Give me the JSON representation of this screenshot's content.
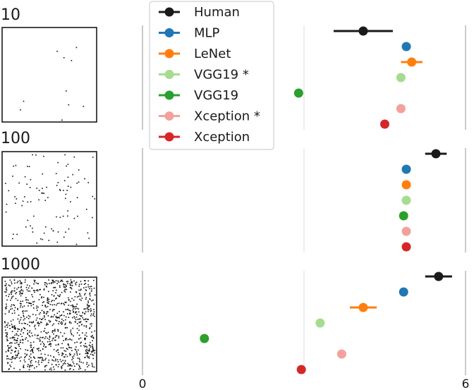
{
  "chart_data": {
    "type": "scatter",
    "xlim": [
      0,
      6
    ],
    "xticks": [
      "0",
      "6"
    ],
    "grid": true,
    "legend_position": "top-center",
    "series": [
      {
        "name": "Human",
        "color": "#1a1a1a"
      },
      {
        "name": "MLP",
        "color": "#1f77b4"
      },
      {
        "name": "LeNet",
        "color": "#ff7f0e"
      },
      {
        "name": "VGG19 *",
        "color": "#a6dc8f"
      },
      {
        "name": "VGG19",
        "color": "#2ca02c"
      },
      {
        "name": "Xception *",
        "color": "#f4a19e"
      },
      {
        "name": "Xception",
        "color": "#d62728"
      }
    ],
    "panels": [
      {
        "label": "10",
        "dot_count": 10,
        "values": [
          4.1,
          4.9,
          5.0,
          4.8,
          2.9,
          4.8,
          4.5
        ],
        "errors": [
          0.55,
          0,
          0.2,
          0,
          0,
          0,
          0
        ]
      },
      {
        "label": "100",
        "dot_count": 100,
        "values": [
          5.45,
          4.9,
          4.9,
          4.9,
          4.85,
          4.9,
          4.9
        ],
        "errors": [
          0.2,
          0,
          0,
          0,
          0,
          0,
          0
        ]
      },
      {
        "label": "1000",
        "dot_count": 1000,
        "values": [
          5.5,
          4.85,
          4.1,
          3.3,
          1.15,
          3.7,
          2.95
        ],
        "errors": [
          0.25,
          0,
          0.25,
          0,
          0,
          0,
          0
        ]
      }
    ]
  }
}
